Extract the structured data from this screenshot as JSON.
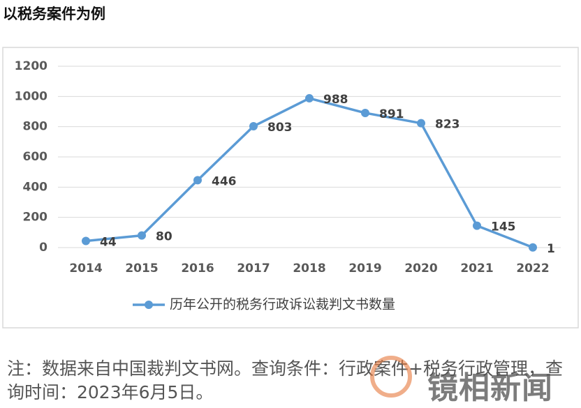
{
  "heading": "以税务案件为例",
  "chart_data": {
    "type": "line",
    "categories": [
      "2014",
      "2015",
      "2016",
      "2017",
      "2018",
      "2019",
      "2020",
      "2021",
      "2022"
    ],
    "series": [
      {
        "name": "历年公开的税务行政诉讼裁判文书数量",
        "color": "#5b9bd5",
        "values": [
          44,
          80,
          446,
          803,
          988,
          891,
          823,
          145,
          1
        ]
      }
    ],
    "ylim": [
      0,
      1200
    ],
    "yticks": [
      0,
      200,
      400,
      600,
      800,
      1000,
      1200
    ],
    "grid": true,
    "legend": "bottom",
    "data_labels": true
  },
  "note": "注：数据来自中国裁判文书网。查询条件：行政案件+税务行政管理，查询时间：2023年6月5日。",
  "watermark": "镜相新闻"
}
